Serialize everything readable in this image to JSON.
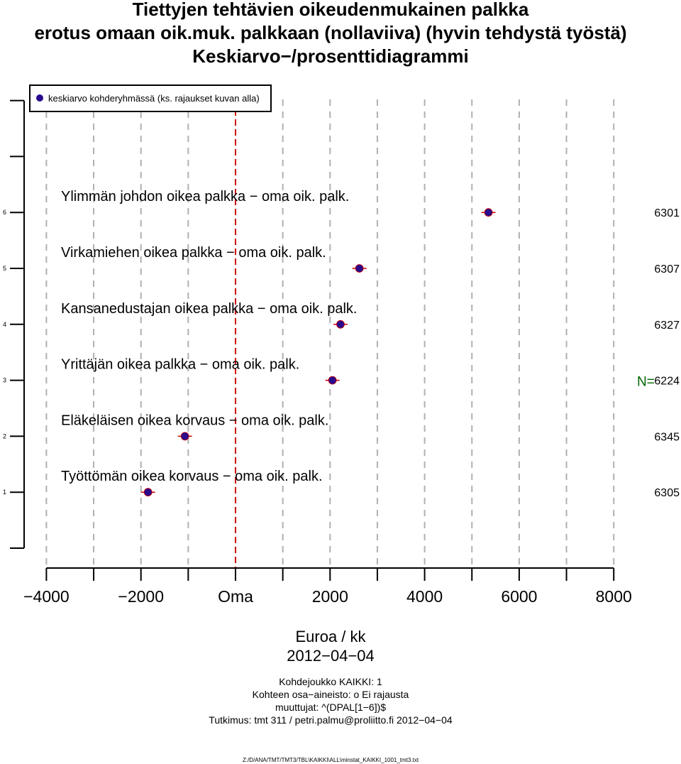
{
  "title": [
    "Tiettyjen tehtävien oikeudenmukainen palkka",
    "erotus omaan oik.muk. palkkaan (nollaviiva) (hyvin tehdystä työstä)",
    "Keskiarvo−/prosenttidiagrammi"
  ],
  "legend": {
    "label": "keskiarvo kohderyhmässä (ks. rajaukset kuvan alla)"
  },
  "n_prefix": "N=",
  "footer": {
    "xlabel": "Euroa / kk",
    "date": "2012−04−04",
    "lines": [
      "Kohdejoukko KAIKKI: 1",
      "Kohteen osa−aineisto: o Ei rajausta",
      "muuttujat: ^(DPAL[1−6])$",
      "Tutkimus: tmt 311 / petri.palmu@proliitto.fi 2012−04−04"
    ],
    "path": "Z:/D/ANA/TMT/TMT3/TBL\\KAIKKI\\ALL\\minstat_KAIKKI_1001_tmt3.txt"
  },
  "colors": {
    "point_fill": "#2a0a8c",
    "point_outline": "#cc0000",
    "zero_line": "#cc0000",
    "grid": "#b0b0b0",
    "n_label": "#006400"
  },
  "chart_data": {
    "type": "scatter",
    "title": "Tiettyjen tehtävien oikeudenmukainen palkka erotus omaan oik.muk. palkkaan (nollaviiva) (hyvin tehdystä työstä) Keskiarvo−/prosenttidiagrammi",
    "xlabel": "Euroa / kk",
    "xlim": [
      -4000,
      8000
    ],
    "ylim": [
      0,
      8
    ],
    "zero_label": "Oma",
    "x_tick_labels": [
      "−4000",
      "−2000",
      "Oma",
      "2000",
      "4000",
      "6000",
      "8000"
    ],
    "x_tick_values": [
      -4000,
      -2000,
      0,
      2000,
      4000,
      6000,
      8000
    ],
    "y_tick_labels": [
      "1",
      "2",
      "3",
      "4",
      "5",
      "6"
    ],
    "y_tick_values": [
      1,
      2,
      3,
      4,
      5,
      6
    ],
    "grid": true,
    "legend_position": "top-left",
    "series": [
      {
        "name": "keskiarvo kohderyhmässä (ks. rajaukset kuvan alla)",
        "points": [
          {
            "y": 6,
            "label": "Ylimmän johdon oikea palkka − oma oik. palk.",
            "x": 5350,
            "n": "6301"
          },
          {
            "y": 5,
            "label": "Virkamiehen oikea palkka − oma oik. palk.",
            "x": 2620,
            "n": "6307"
          },
          {
            "y": 4,
            "label": "Kansanedustajan oikea palkka − oma oik. palk.",
            "x": 2220,
            "n": "6327"
          },
          {
            "y": 3,
            "label": "Yrittäjän oikea palkka − oma oik. palk.",
            "x": 2050,
            "n": "6224"
          },
          {
            "y": 2,
            "label": "Eläkeläisen oikea korvaus − oma oik. palk.",
            "x": -1070,
            "n": "6345"
          },
          {
            "y": 1,
            "label": "Työttömän oikea korvaus − oma oik. palk.",
            "x": -1850,
            "n": "6305"
          }
        ]
      }
    ]
  }
}
